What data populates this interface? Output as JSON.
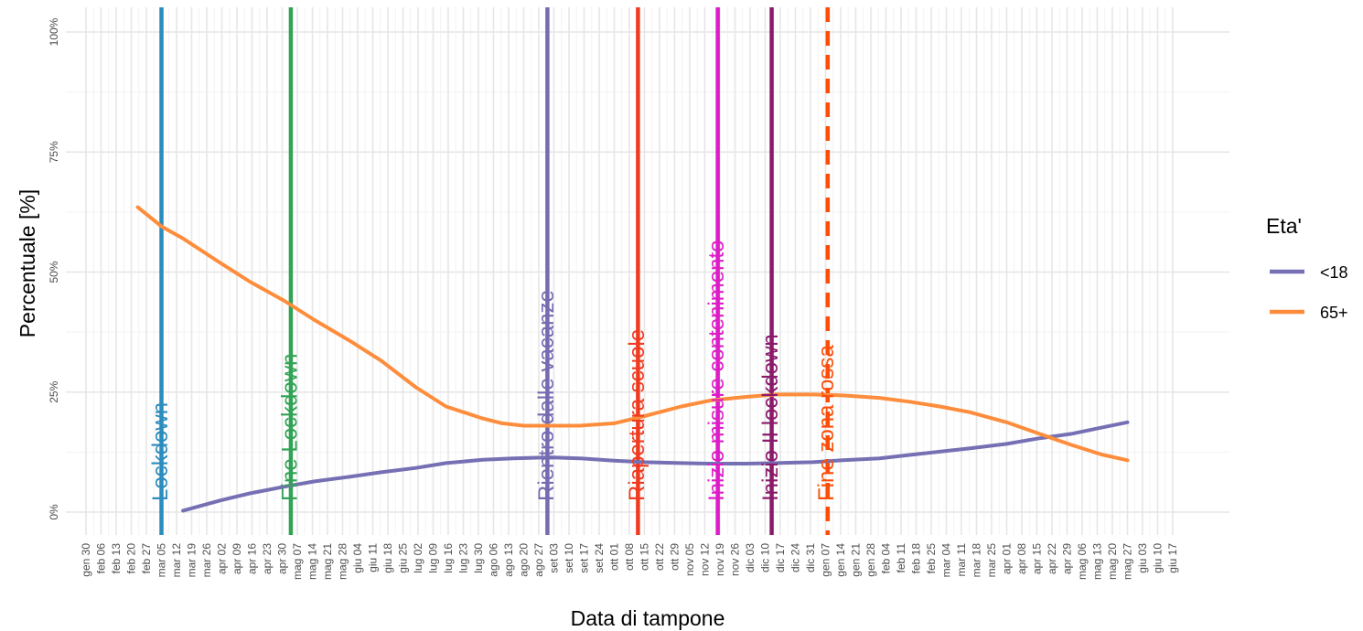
{
  "chart_data": {
    "type": "line",
    "xlabel": "Data di tampone",
    "ylabel": "Percentuale [%]",
    "ylim": [
      0,
      100
    ],
    "yticks": [
      0,
      25,
      50,
      75,
      100
    ],
    "ytick_labels": [
      "0%",
      "25%",
      "50%",
      "75%",
      "100%"
    ],
    "grid": true,
    "x_dates": [
      "2020-01-30",
      "2020-02-06",
      "2020-02-13",
      "2020-02-20",
      "2020-02-27",
      "2020-03-05",
      "2020-03-12",
      "2020-03-19",
      "2020-03-26",
      "2020-04-02",
      "2020-04-09",
      "2020-04-16",
      "2020-04-23",
      "2020-04-30",
      "2020-05-07",
      "2020-05-14",
      "2020-05-21",
      "2020-05-28",
      "2020-06-04",
      "2020-06-11",
      "2020-06-18",
      "2020-06-25",
      "2020-07-02",
      "2020-07-09",
      "2020-07-16",
      "2020-07-23",
      "2020-07-30",
      "2020-08-06",
      "2020-08-13",
      "2020-08-20",
      "2020-08-27",
      "2020-09-03",
      "2020-09-10",
      "2020-09-17",
      "2020-09-24",
      "2020-10-01",
      "2020-10-08",
      "2020-10-15",
      "2020-10-22",
      "2020-10-29",
      "2020-11-05",
      "2020-11-12",
      "2020-11-19",
      "2020-11-26",
      "2020-12-03",
      "2020-12-10",
      "2020-12-17",
      "2020-12-24",
      "2020-12-31",
      "2021-01-07",
      "2021-01-14",
      "2021-01-21",
      "2021-01-28",
      "2021-02-04",
      "2021-02-11",
      "2021-02-18",
      "2021-02-25",
      "2021-03-04",
      "2021-03-11",
      "2021-03-18",
      "2021-03-25",
      "2021-04-01",
      "2021-04-08",
      "2021-04-15",
      "2021-04-22",
      "2021-04-29",
      "2021-05-06",
      "2021-05-13",
      "2021-05-20",
      "2021-05-27",
      "2021-06-03",
      "2021-06-10",
      "2021-06-17"
    ],
    "x_tick_labels": [
      "gen 30",
      "feb 06",
      "feb 13",
      "feb 20",
      "feb 27",
      "mar 05",
      "mar 12",
      "mar 19",
      "mar 26",
      "apr 02",
      "apr 09",
      "apr 16",
      "apr 23",
      "apr 30",
      "mag 07",
      "mag 14",
      "mag 21",
      "mag 28",
      "giu 04",
      "giu 11",
      "giu 18",
      "giu 25",
      "lug 02",
      "lug 09",
      "lug 16",
      "lug 23",
      "lug 30",
      "ago 06",
      "ago 13",
      "ago 20",
      "ago 27",
      "set 03",
      "set 10",
      "set 17",
      "set 24",
      "ott 01",
      "ott 08",
      "ott 15",
      "ott 22",
      "ott 29",
      "nov 05",
      "nov 12",
      "nov 19",
      "nov 26",
      "dic 03",
      "dic 10",
      "dic 17",
      "dic 24",
      "dic 31",
      "gen 07",
      "gen 14",
      "gen 21",
      "gen 28",
      "feb 04",
      "feb 11",
      "feb 18",
      "feb 25",
      "mar 04",
      "mar 11",
      "mar 18",
      "mar 25",
      "apr 01",
      "apr 08",
      "apr 15",
      "apr 22",
      "apr 29",
      "mag 06",
      "mag 13",
      "mag 20",
      "mag 27",
      "giu 03",
      "giu 10",
      "giu 17"
    ],
    "legend": {
      "title": "Eta'",
      "position": "right"
    },
    "series": [
      {
        "name": "<18",
        "color": "#7570b3",
        "x": [
          "2020-03-15",
          "2020-04-01",
          "2020-04-15",
          "2020-05-01",
          "2020-05-15",
          "2020-06-01",
          "2020-06-15",
          "2020-07-01",
          "2020-07-15",
          "2020-08-01",
          "2020-08-15",
          "2020-09-01",
          "2020-09-15",
          "2020-10-01",
          "2020-10-15",
          "2020-11-01",
          "2020-11-15",
          "2020-12-01",
          "2020-12-15",
          "2021-01-01",
          "2021-01-15",
          "2021-02-01",
          "2021-02-15",
          "2021-03-01",
          "2021-03-15",
          "2021-04-01",
          "2021-04-15",
          "2021-05-01",
          "2021-05-15",
          "2021-05-27"
        ],
        "y": [
          0.3,
          2.4,
          3.9,
          5.3,
          6.4,
          7.4,
          8.3,
          9.2,
          10.2,
          10.9,
          11.2,
          11.4,
          11.2,
          10.7,
          10.4,
          10.2,
          10.1,
          10.1,
          10.2,
          10.4,
          10.8,
          11.2,
          11.9,
          12.6,
          13.3,
          14.2,
          15.3,
          16.3,
          17.6,
          18.7
        ]
      },
      {
        "name": "65+",
        "color": "#fd8d3c",
        "x": [
          "2020-02-23",
          "2020-03-05",
          "2020-03-15",
          "2020-04-01",
          "2020-04-15",
          "2020-05-01",
          "2020-05-15",
          "2020-06-01",
          "2020-06-15",
          "2020-07-01",
          "2020-07-15",
          "2020-08-01",
          "2020-08-10",
          "2020-08-20",
          "2020-09-01",
          "2020-09-15",
          "2020-10-01",
          "2020-10-15",
          "2020-11-01",
          "2020-11-15",
          "2020-12-01",
          "2020-12-15",
          "2021-01-01",
          "2021-01-15",
          "2021-02-01",
          "2021-02-15",
          "2021-03-01",
          "2021-03-15",
          "2021-04-01",
          "2021-04-15",
          "2021-05-01",
          "2021-05-15",
          "2021-05-27"
        ],
        "y": [
          63.5,
          59.5,
          57.0,
          52.0,
          48.0,
          44.0,
          40.0,
          35.5,
          31.5,
          26.0,
          22.0,
          19.5,
          18.5,
          18.0,
          18.0,
          18.0,
          18.5,
          20.0,
          22.0,
          23.3,
          24.0,
          24.5,
          24.5,
          24.3,
          23.8,
          23.0,
          22.0,
          20.8,
          18.7,
          16.5,
          14.0,
          12.0,
          10.8
        ]
      }
    ],
    "annotations": [
      {
        "label": "Lockdown",
        "date": "2020-03-05",
        "color": "#2b8cbe",
        "dashed": false
      },
      {
        "label": "Fine Lockdown",
        "date": "2020-05-04",
        "color": "#31a354",
        "dashed": false
      },
      {
        "label": "Rientro dalle vacanze",
        "date": "2020-08-31",
        "color": "#756bb1",
        "dashed": false
      },
      {
        "label": "Riapertura scuole",
        "date": "2020-10-12",
        "color": "#f03b20",
        "dashed": false
      },
      {
        "label": "Inizio misure contenimento",
        "date": "2020-11-18",
        "color": "#dd1cc8",
        "dashed": false
      },
      {
        "label": "Inizio II lockdown",
        "date": "2020-12-13",
        "color": "#8b1a6b",
        "dashed": false
      },
      {
        "label": "Fine zona rossa",
        "date": "2021-01-08",
        "color": "#fc4e08",
        "dashed": true
      }
    ]
  }
}
